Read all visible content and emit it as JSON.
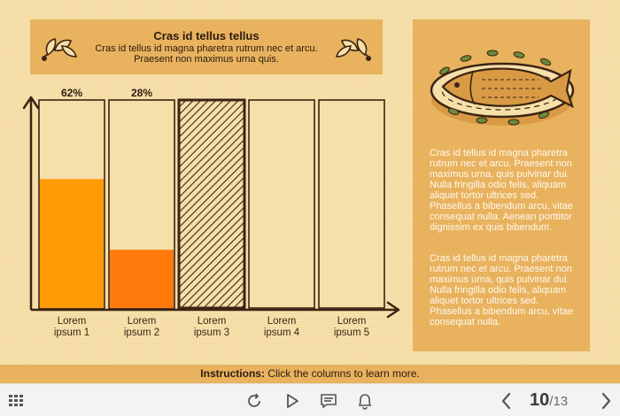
{
  "header": {
    "title": "Cras id tellus tellus",
    "subtitle": "Cras id tellus id magna pharetra rutrum nec et arcu. Praesent non maximus urna quis."
  },
  "chart_data": {
    "type": "bar",
    "categories": [
      "Lorem\nipsum 1",
      "Lorem\nipsum 2",
      "Lorem\nipsum 3",
      "Lorem\nipsum 4",
      "Lorem\nipsum 5"
    ],
    "values": [
      62,
      28,
      null,
      null,
      null
    ],
    "value_labels": [
      "62%",
      "28%",
      "",
      "",
      ""
    ],
    "ylim": [
      0,
      100
    ],
    "colors": [
      "#ff9b05",
      "#ff7a0a",
      "hatched",
      "empty",
      "empty"
    ],
    "title": "",
    "xlabel": "",
    "ylabel": ""
  },
  "columns": [
    {
      "label_line1": "Lorem",
      "label_line2": "ipsum 1",
      "pct": "62%"
    },
    {
      "label_line1": "Lorem",
      "label_line2": "ipsum 2",
      "pct": "28%"
    },
    {
      "label_line1": "Lorem",
      "label_line2": "ipsum 3",
      "pct": ""
    },
    {
      "label_line1": "Lorem",
      "label_line2": "ipsum 4",
      "pct": ""
    },
    {
      "label_line1": "Lorem",
      "label_line2": "ipsum 5",
      "pct": ""
    }
  ],
  "side_panel": {
    "paragraph1": "Cras id tellus id magna pharetra rutrum nec et arcu. Praesent non maximus urna, quis pulvinar dui. Nulla fringilla odio felis, aliquam aliquet tortor ultrices sed. Phasellus a bibendum arcu, vitae consequat nulla. Aenean porttitor dignissim ex quis bibendum.",
    "paragraph2": "Cras id tellus id magna pharetra rutrum nec et arcu. Praesent non maximus urna, quis pulvinar dui. Nulla fringilla odio felis, aliquam aliquet tortor ultrices sed. Phasellus a bibendum arcu, vitae consequat nulla."
  },
  "instructions": {
    "label": "Instructions:",
    "text": " Click the columns to learn more."
  },
  "toolbar": {
    "current_page": "10",
    "total_pages": "/13",
    "icons": [
      "grid-menu-icon",
      "replay-icon",
      "play-icon",
      "comment-icon",
      "bell-icon",
      "prev-icon",
      "next-icon"
    ]
  },
  "colors": {
    "background": "#f7dfa9",
    "panel": "#e8b25e",
    "bar1": "#ff9b05",
    "bar2": "#ff7a0a",
    "outline": "#3b2414"
  }
}
